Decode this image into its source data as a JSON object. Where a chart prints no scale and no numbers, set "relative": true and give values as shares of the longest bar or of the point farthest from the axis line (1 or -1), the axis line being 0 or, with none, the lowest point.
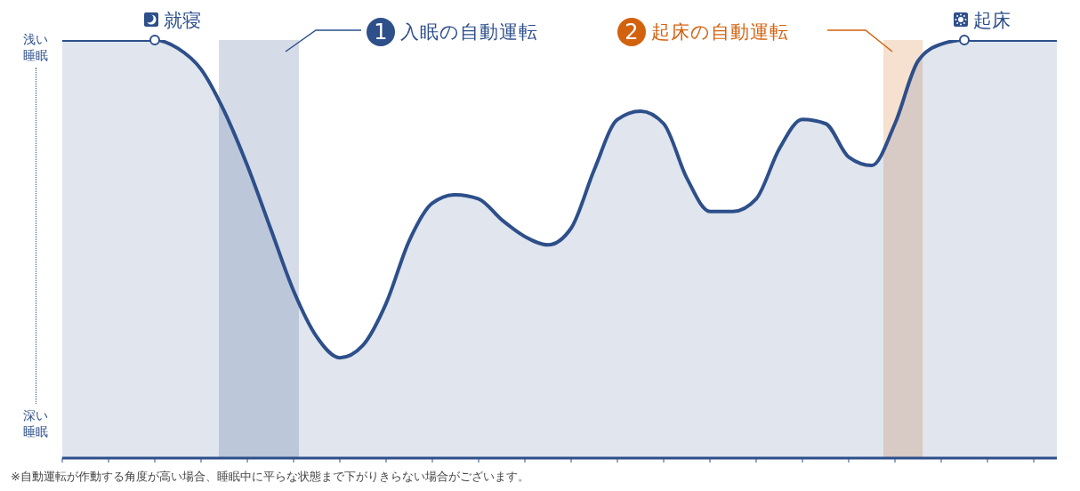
{
  "chart_data": {
    "type": "area",
    "relative": true,
    "categories": [
      null,
      null,
      null,
      null,
      null,
      null,
      null,
      null,
      null,
      null,
      null,
      null,
      null,
      null,
      null,
      null,
      null,
      null,
      null,
      null,
      null,
      null,
      null,
      null,
      null,
      null,
      null,
      null,
      null,
      null,
      null,
      null,
      null,
      null,
      null,
      null,
      null,
      null,
      null,
      null,
      null,
      null,
      null,
      null
    ],
    "series": [
      {
        "color": "#2d4f8a",
        "values": [
          1,
          1,
          1,
          1,
          1,
          0.98,
          0.93,
          0.83,
          0.7,
          0.55,
          0.4,
          0.29,
          0.24,
          0.27,
          0.37,
          0.52,
          0.61,
          0.63,
          0.62,
          0.57,
          0.53,
          0.51,
          0.55,
          0.69,
          0.81,
          0.83,
          0.8,
          0.67,
          0.59,
          0.59,
          0.62,
          0.74,
          0.81,
          0.8,
          0.72,
          0.7,
          0.8,
          0.95,
          0.99,
          1,
          1,
          1,
          1,
          1
        ]
      }
    ],
    "annotations": [
      "浅い睡眠",
      "深い睡眠",
      "1 入眠の自動運転",
      "2 起床の自動運転",
      "就寝",
      "起床",
      "※自動運転が作動する角度が高い場合、睡眠中に平らな状態まで下がりきらない場合がございます。"
    ]
  }
}
